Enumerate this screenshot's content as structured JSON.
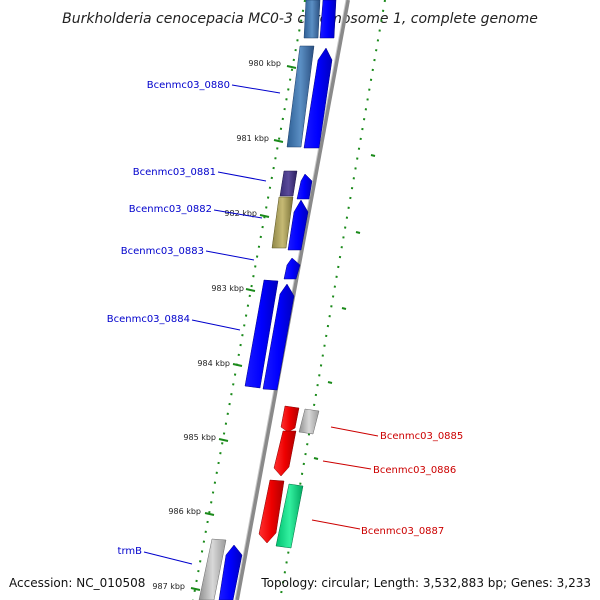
{
  "title": "Burkholderia cenocepacia MC0-3 chromosome 1, complete genome",
  "footer": {
    "accession": "Accession: NC_010508",
    "topology": "Topology: circular; Length: 3,532,883 bp; Genes: 3,233"
  },
  "ticks": [
    "980 kbp",
    "981 kbp",
    "982 kbp",
    "983 kbp",
    "984 kbp",
    "985 kbp",
    "986 kbp",
    "987 kbp"
  ],
  "genes": {
    "g0880": "Bcenmc03_0880",
    "g0881": "Bcenmc03_0881",
    "g0882": "Bcenmc03_0882",
    "g0883": "Bcenmc03_0883",
    "g0884": "Bcenmc03_0884",
    "g0885": "Bcenmc03_0885",
    "g0886": "Bcenmc03_0886",
    "g0887": "Bcenmc03_0887",
    "trmB": "trmB"
  },
  "colors": {
    "forward": "#0000ff",
    "reverse": "#ff0000",
    "label_forward": "#0000cc",
    "label_reverse": "#cc0000",
    "backbone": "#888888",
    "gc_dots": "#1a8a1a"
  }
}
